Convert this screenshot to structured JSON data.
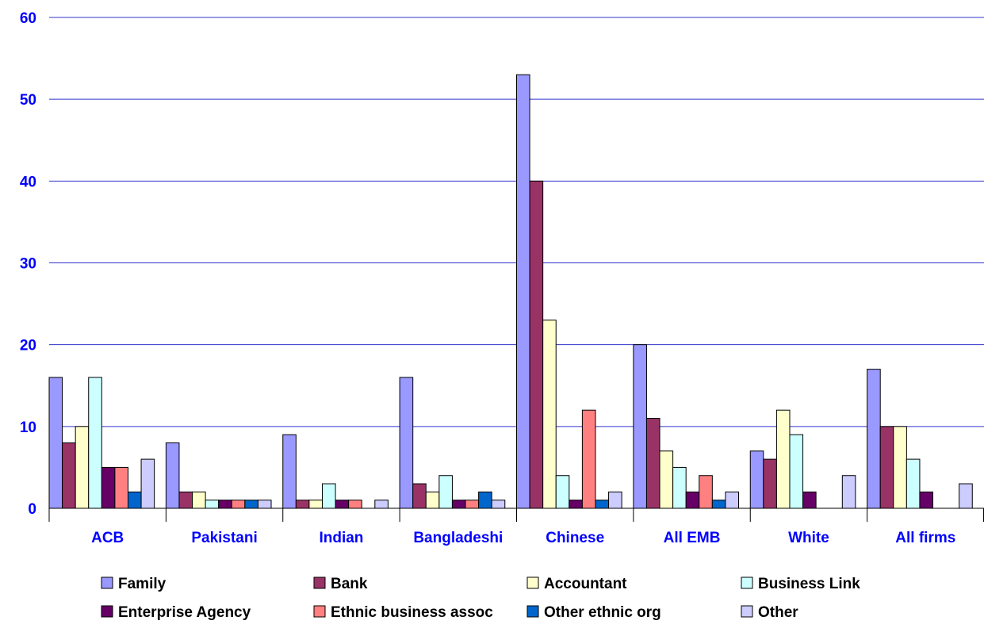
{
  "chart_data": {
    "type": "bar",
    "title": "",
    "xlabel": "",
    "ylabel": "",
    "ylim": [
      0,
      60
    ],
    "yticks": [
      0,
      10,
      20,
      30,
      40,
      50,
      60
    ],
    "grid": true,
    "legend_position": "bottom",
    "categories": [
      "ACB",
      "Pakistani",
      "Indian",
      "Bangladeshi",
      "Chinese",
      "All EMB",
      "White",
      "All firms"
    ],
    "series": [
      {
        "name": "Family",
        "color": "#9999ff",
        "values": [
          16,
          8,
          9,
          16,
          53,
          20,
          7,
          17
        ]
      },
      {
        "name": "Bank",
        "color": "#993366",
        "values": [
          8,
          2,
          1,
          3,
          40,
          11,
          6,
          10
        ]
      },
      {
        "name": "Accountant",
        "color": "#ffffcc",
        "values": [
          10,
          2,
          1,
          2,
          23,
          7,
          12,
          10
        ]
      },
      {
        "name": "Business Link",
        "color": "#ccffff",
        "values": [
          16,
          1,
          3,
          4,
          4,
          5,
          9,
          6
        ]
      },
      {
        "name": "Enterprise Agency",
        "color": "#660066",
        "values": [
          5,
          1,
          1,
          1,
          1,
          2,
          2,
          2
        ]
      },
      {
        "name": "Ethnic business assoc",
        "color": "#ff8080",
        "values": [
          5,
          1,
          1,
          1,
          12,
          4,
          0,
          0
        ]
      },
      {
        "name": "Other ethnic org",
        "color": "#0066cc",
        "values": [
          2,
          1,
          0,
          2,
          1,
          1,
          0,
          0
        ]
      },
      {
        "name": "Other",
        "color": "#ccccff",
        "values": [
          6,
          1,
          1,
          1,
          2,
          2,
          4,
          3
        ]
      }
    ]
  },
  "colors": {
    "gridline": "#3333cc",
    "axis": "#000000",
    "tick_text": "#0000ff"
  }
}
